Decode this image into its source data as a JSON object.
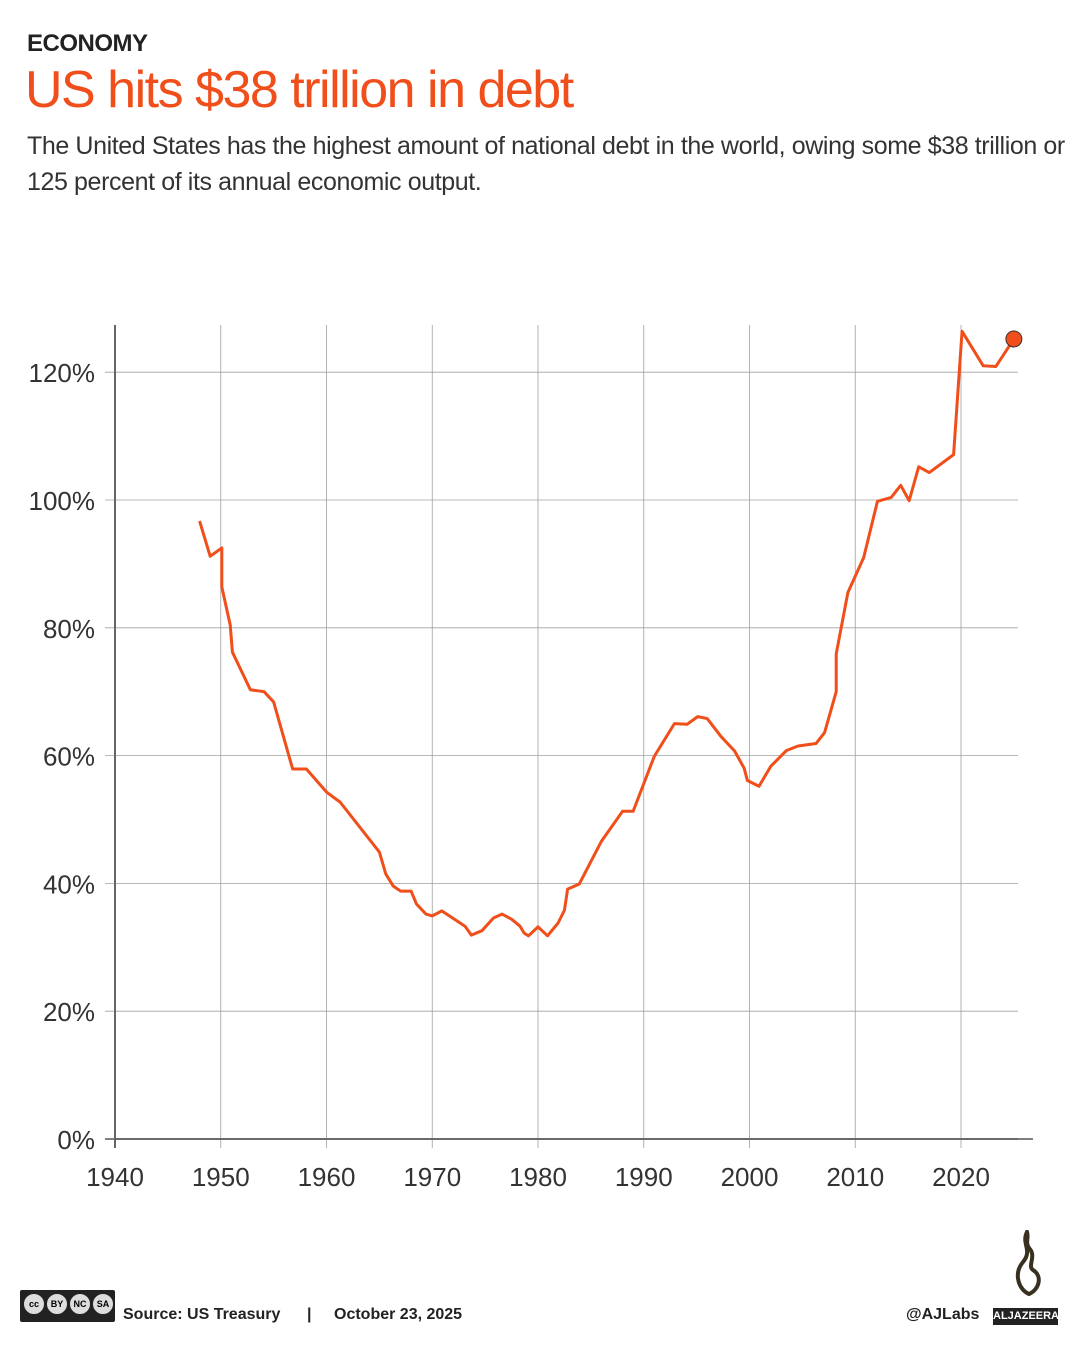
{
  "header": {
    "kicker": "ECONOMY",
    "title": "US hits $38 trillion in debt",
    "subtitle": "The United States has the highest amount of national debt in the world, owing some $38 trillion or 125 percent of its annual economic output."
  },
  "footer": {
    "source": "Source: US Treasury",
    "separator": "|",
    "date": "October 23, 2025",
    "handle": "@AJLabs",
    "brand": "ALJAZEERA",
    "license": [
      "BY",
      "NC",
      "SA"
    ]
  },
  "colors": {
    "accent": "#f04e1a",
    "grid": "#a0a0a0",
    "text": "#333333"
  },
  "chart_data": {
    "type": "line",
    "title": "",
    "xlabel": "",
    "ylabel": "",
    "xlim": [
      1940,
      2025
    ],
    "ylim": [
      0,
      127
    ],
    "xticks": [
      1940,
      1950,
      1960,
      1970,
      1980,
      1990,
      2000,
      2010,
      2020
    ],
    "xtick_labels": [
      "1940",
      "1950",
      "1960",
      "1970",
      "1980",
      "1990",
      "2000",
      "2010",
      "2020"
    ],
    "yticks": [
      0,
      20,
      40,
      60,
      80,
      100,
      120
    ],
    "ytick_labels": [
      "0%",
      "20%",
      "40%",
      "60%",
      "80%",
      "100%",
      "120%"
    ],
    "grid": true,
    "series": [
      {
        "color": "#f04e1a",
        "points": [
          [
            1948,
            96.7
          ],
          [
            1949,
            91.2
          ],
          [
            1950.1,
            92.5
          ],
          [
            1950.1,
            86.4
          ],
          [
            1950.9,
            80.4
          ],
          [
            1951.1,
            76.2
          ],
          [
            1952.8,
            70.3
          ],
          [
            1954.1,
            70.0
          ],
          [
            1955,
            68.4
          ],
          [
            1956.8,
            57.9
          ],
          [
            1958.1,
            57.9
          ],
          [
            1960,
            54.3
          ],
          [
            1961.3,
            52.7
          ],
          [
            1965,
            44.9
          ],
          [
            1965.6,
            41.5
          ],
          [
            1966.3,
            39.6
          ],
          [
            1967,
            38.8
          ],
          [
            1968,
            38.8
          ],
          [
            1968.5,
            36.8
          ],
          [
            1969.4,
            35.2
          ],
          [
            1970,
            34.9
          ],
          [
            1970.9,
            35.7
          ],
          [
            1973.1,
            33.3
          ],
          [
            1973.7,
            31.9
          ],
          [
            1974.7,
            32.6
          ],
          [
            1975.8,
            34.6
          ],
          [
            1976.6,
            35.2
          ],
          [
            1977.5,
            34.4
          ],
          [
            1978.3,
            33.3
          ],
          [
            1978.7,
            32.2
          ],
          [
            1979.1,
            31.8
          ],
          [
            1980,
            33.2
          ],
          [
            1980.9,
            31.8
          ],
          [
            1981.9,
            33.8
          ],
          [
            1982.5,
            35.8
          ],
          [
            1982.8,
            39.1
          ],
          [
            1983.9,
            39.9
          ],
          [
            1986,
            46.6
          ],
          [
            1988,
            51.3
          ],
          [
            1989,
            51.3
          ],
          [
            1991,
            59.9
          ],
          [
            1992.9,
            65.0
          ],
          [
            1994.1,
            64.9
          ],
          [
            1995.1,
            66.1
          ],
          [
            1996,
            65.8
          ],
          [
            1997.3,
            63.0
          ],
          [
            1998.6,
            60.7
          ],
          [
            1999.5,
            58.0
          ],
          [
            1999.8,
            56.1
          ],
          [
            2000.9,
            55.2
          ],
          [
            2002,
            58.3
          ],
          [
            2003.5,
            60.8
          ],
          [
            2004.6,
            61.5
          ],
          [
            2006.3,
            61.9
          ],
          [
            2007.1,
            63.6
          ],
          [
            2008.2,
            70.0
          ],
          [
            2008.2,
            75.9
          ],
          [
            2009.3,
            85.5
          ],
          [
            2010.8,
            91.0
          ],
          [
            2012.1,
            99.8
          ],
          [
            2013.4,
            100.4
          ],
          [
            2014.3,
            102.3
          ],
          [
            2015.1,
            99.9
          ],
          [
            2016,
            105.2
          ],
          [
            2017,
            104.3
          ],
          [
            2019.3,
            107.1
          ],
          [
            2020.1,
            126.4
          ],
          [
            2022.1,
            121.0
          ],
          [
            2023.3,
            120.9
          ],
          [
            2025,
            125.2
          ]
        ]
      }
    ],
    "highlight": {
      "x": 2025,
      "y": 125.2
    }
  }
}
